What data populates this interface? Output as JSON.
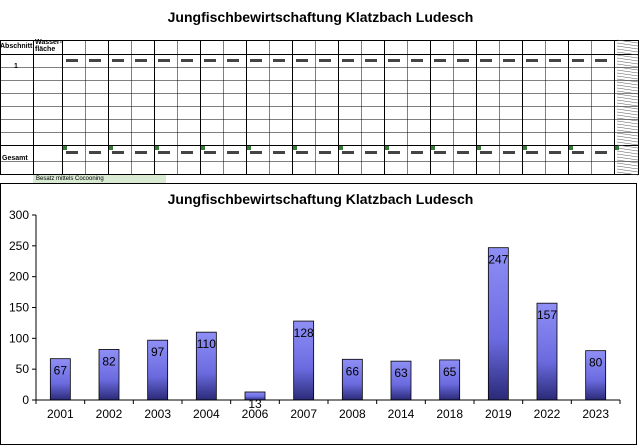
{
  "page_title": "Jungfischbewirtschaftung Klatzbach Ludesch",
  "sheet": {
    "row_header_section": "Abschnitt",
    "row_header_fish": "Wasser-fläche",
    "row_label_1": "1",
    "row_label_total": "Gesamt",
    "note": "Besatz mittels Cocooning"
  },
  "chart_data": {
    "type": "bar",
    "title": "Jungfischbewirtschaftung Klatzbach Ludesch",
    "categories": [
      "2001",
      "2002",
      "2003",
      "2004",
      "2006",
      "2007",
      "2008",
      "2014",
      "2018",
      "2019",
      "2022",
      "2023"
    ],
    "values": [
      67,
      82,
      97,
      110,
      13,
      128,
      66,
      63,
      65,
      247,
      157,
      80
    ],
    "ylim": [
      0,
      300
    ],
    "yticks": [
      0,
      50,
      100,
      150,
      200,
      250,
      300
    ],
    "xlabel": "",
    "ylabel": "",
    "grid": false,
    "legend": "none",
    "bar_color": "#7b7bf0"
  }
}
